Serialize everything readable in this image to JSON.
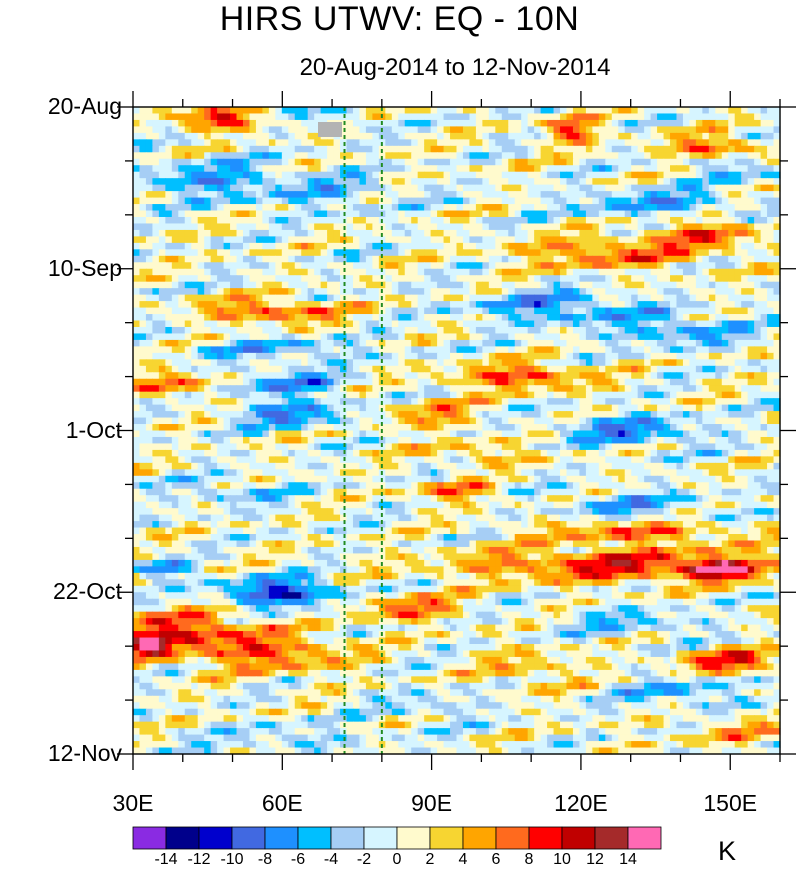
{
  "chart_data": {
    "type": "heatmap",
    "title": "HIRS UTWV: EQ - 10N",
    "subtitle": "20-Aug-2014 to 12-Nov-2014",
    "units": "K",
    "x_axis": {
      "range": [
        30,
        160
      ],
      "tick_values": [
        30,
        60,
        90,
        120,
        150
      ],
      "tick_labels": [
        "30E",
        "60E",
        "90E",
        "120E",
        "150E"
      ],
      "minor_step": 10
    },
    "y_axis": {
      "range_days": [
        0,
        84
      ],
      "tick_days": [
        0,
        21,
        42,
        63,
        84
      ],
      "tick_labels": [
        "20-Aug",
        "10-Sep",
        "1-Oct",
        "22-Oct",
        "12-Nov"
      ],
      "minor_step_days": 7
    },
    "reference_lines": [
      {
        "x": 72.5,
        "style": "dashed",
        "color": "#228b22"
      },
      {
        "x": 80,
        "style": "dashed",
        "color": "#228b22"
      }
    ],
    "colorbar": {
      "levels": [
        -14,
        -12,
        -10,
        -8,
        -6,
        -4,
        -2,
        0,
        2,
        4,
        6,
        8,
        10,
        12,
        14
      ],
      "colors": [
        "#8a2be2",
        "#00008b",
        "#0000cd",
        "#4169e1",
        "#1e90ff",
        "#00bfff",
        "#a6cef5",
        "#d6f5ff",
        "#fffacd",
        "#f7d531",
        "#ffa500",
        "#ff6a1e",
        "#ff0000",
        "#c00000",
        "#a52a2a",
        "#ff69b4"
      ]
    }
  }
}
